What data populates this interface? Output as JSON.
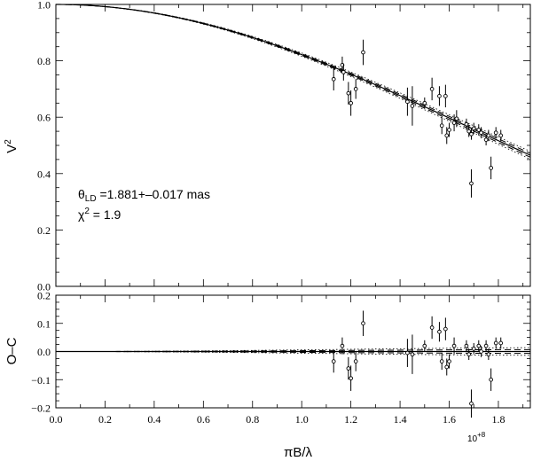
{
  "chart_data": [
    {
      "panel": "top",
      "type": "scatter",
      "ylabel": "V",
      "ylabel_sup": "2",
      "xlim": [
        0.0,
        1.93
      ],
      "ylim": [
        0.0,
        1.0
      ],
      "yticks": [
        "0.0",
        "0.2",
        "0.4",
        "0.6",
        "0.8",
        "1.0"
      ],
      "model": {
        "theta_ld_mas": 1.881,
        "theta_err_mas": 0.017,
        "limb_darkened": true
      },
      "annotations": {
        "theta_symbol": "θ",
        "theta_subscript": "LD",
        "theta_text": " =1.881+–0.017 mas",
        "chi_symbol": "χ",
        "chi_sup": "2",
        "chi_text": " = 1.9"
      },
      "points": [
        {
          "x": 1.13,
          "y": 0.735,
          "err": 0.04
        },
        {
          "x": 1.165,
          "y": 0.785,
          "err": 0.03
        },
        {
          "x": 1.17,
          "y": 0.76,
          "err": 0.03
        },
        {
          "x": 1.19,
          "y": 0.685,
          "err": 0.04
        },
        {
          "x": 1.2,
          "y": 0.65,
          "err": 0.045
        },
        {
          "x": 1.22,
          "y": 0.7,
          "err": 0.035
        },
        {
          "x": 1.25,
          "y": 0.83,
          "err": 0.045
        },
        {
          "x": 1.43,
          "y": 0.655,
          "err": 0.05
        },
        {
          "x": 1.45,
          "y": 0.64,
          "err": 0.07
        },
        {
          "x": 1.5,
          "y": 0.65,
          "err": 0.02
        },
        {
          "x": 1.53,
          "y": 0.7,
          "err": 0.04
        },
        {
          "x": 1.56,
          "y": 0.675,
          "err": 0.035
        },
        {
          "x": 1.57,
          "y": 0.57,
          "err": 0.03
        },
        {
          "x": 1.585,
          "y": 0.675,
          "err": 0.04
        },
        {
          "x": 1.59,
          "y": 0.535,
          "err": 0.03
        },
        {
          "x": 1.6,
          "y": 0.555,
          "err": 0.025
        },
        {
          "x": 1.62,
          "y": 0.58,
          "err": 0.03
        },
        {
          "x": 1.63,
          "y": 0.595,
          "err": 0.03
        },
        {
          "x": 1.67,
          "y": 0.575,
          "err": 0.02
        },
        {
          "x": 1.68,
          "y": 0.55,
          "err": 0.02
        },
        {
          "x": 1.69,
          "y": 0.365,
          "err": 0.05
        },
        {
          "x": 1.69,
          "y": 0.54,
          "err": 0.02
        },
        {
          "x": 1.7,
          "y": 0.56,
          "err": 0.02
        },
        {
          "x": 1.72,
          "y": 0.555,
          "err": 0.02
        },
        {
          "x": 1.73,
          "y": 0.545,
          "err": 0.02
        },
        {
          "x": 1.75,
          "y": 0.52,
          "err": 0.02
        },
        {
          "x": 1.76,
          "y": 0.535,
          "err": 0.02
        },
        {
          "x": 1.77,
          "y": 0.42,
          "err": 0.04
        },
        {
          "x": 1.79,
          "y": 0.545,
          "err": 0.02
        },
        {
          "x": 1.81,
          "y": 0.535,
          "err": 0.02
        }
      ]
    },
    {
      "panel": "bottom",
      "type": "scatter",
      "ylabel": "O–C",
      "xlabel": "πB/λ",
      "x_multiplier_base": "10",
      "x_multiplier_exp": "+8",
      "xlim": [
        0.0,
        1.93
      ],
      "ylim": [
        -0.2,
        0.2
      ],
      "xticks": [
        "0.0",
        "0.2",
        "0.4",
        "0.6",
        "0.8",
        "1.0",
        "1.2",
        "1.4",
        "1.6",
        "1.8"
      ],
      "yticks": [
        "−0.2",
        "−0.1",
        "0.0",
        "0.1",
        "0.2"
      ],
      "points": [
        {
          "x": 1.13,
          "y": -0.035,
          "err": 0.04
        },
        {
          "x": 1.165,
          "y": 0.02,
          "err": 0.03
        },
        {
          "x": 1.19,
          "y": -0.06,
          "err": 0.04
        },
        {
          "x": 1.2,
          "y": -0.095,
          "err": 0.045
        },
        {
          "x": 1.22,
          "y": -0.035,
          "err": 0.035
        },
        {
          "x": 1.25,
          "y": 0.1,
          "err": 0.045
        },
        {
          "x": 1.43,
          "y": -0.005,
          "err": 0.05
        },
        {
          "x": 1.45,
          "y": -0.01,
          "err": 0.07
        },
        {
          "x": 1.5,
          "y": 0.02,
          "err": 0.02
        },
        {
          "x": 1.53,
          "y": 0.085,
          "err": 0.04
        },
        {
          "x": 1.56,
          "y": 0.07,
          "err": 0.035
        },
        {
          "x": 1.57,
          "y": -0.035,
          "err": 0.03
        },
        {
          "x": 1.585,
          "y": 0.08,
          "err": 0.04
        },
        {
          "x": 1.59,
          "y": -0.055,
          "err": 0.03
        },
        {
          "x": 1.6,
          "y": -0.035,
          "err": 0.025
        },
        {
          "x": 1.62,
          "y": 0.02,
          "err": 0.03
        },
        {
          "x": 1.67,
          "y": 0.02,
          "err": 0.02
        },
        {
          "x": 1.68,
          "y": -0.01,
          "err": 0.02
        },
        {
          "x": 1.69,
          "y": -0.185,
          "err": 0.05
        },
        {
          "x": 1.7,
          "y": 0.01,
          "err": 0.02
        },
        {
          "x": 1.72,
          "y": 0.02,
          "err": 0.02
        },
        {
          "x": 1.73,
          "y": 0.0,
          "err": 0.02
        },
        {
          "x": 1.75,
          "y": 0.02,
          "err": 0.02
        },
        {
          "x": 1.76,
          "y": -0.01,
          "err": 0.02
        },
        {
          "x": 1.77,
          "y": -0.1,
          "err": 0.04
        },
        {
          "x": 1.79,
          "y": 0.03,
          "err": 0.02
        },
        {
          "x": 1.81,
          "y": 0.03,
          "err": 0.02
        }
      ]
    }
  ],
  "top_xtick_labels_shown": false
}
